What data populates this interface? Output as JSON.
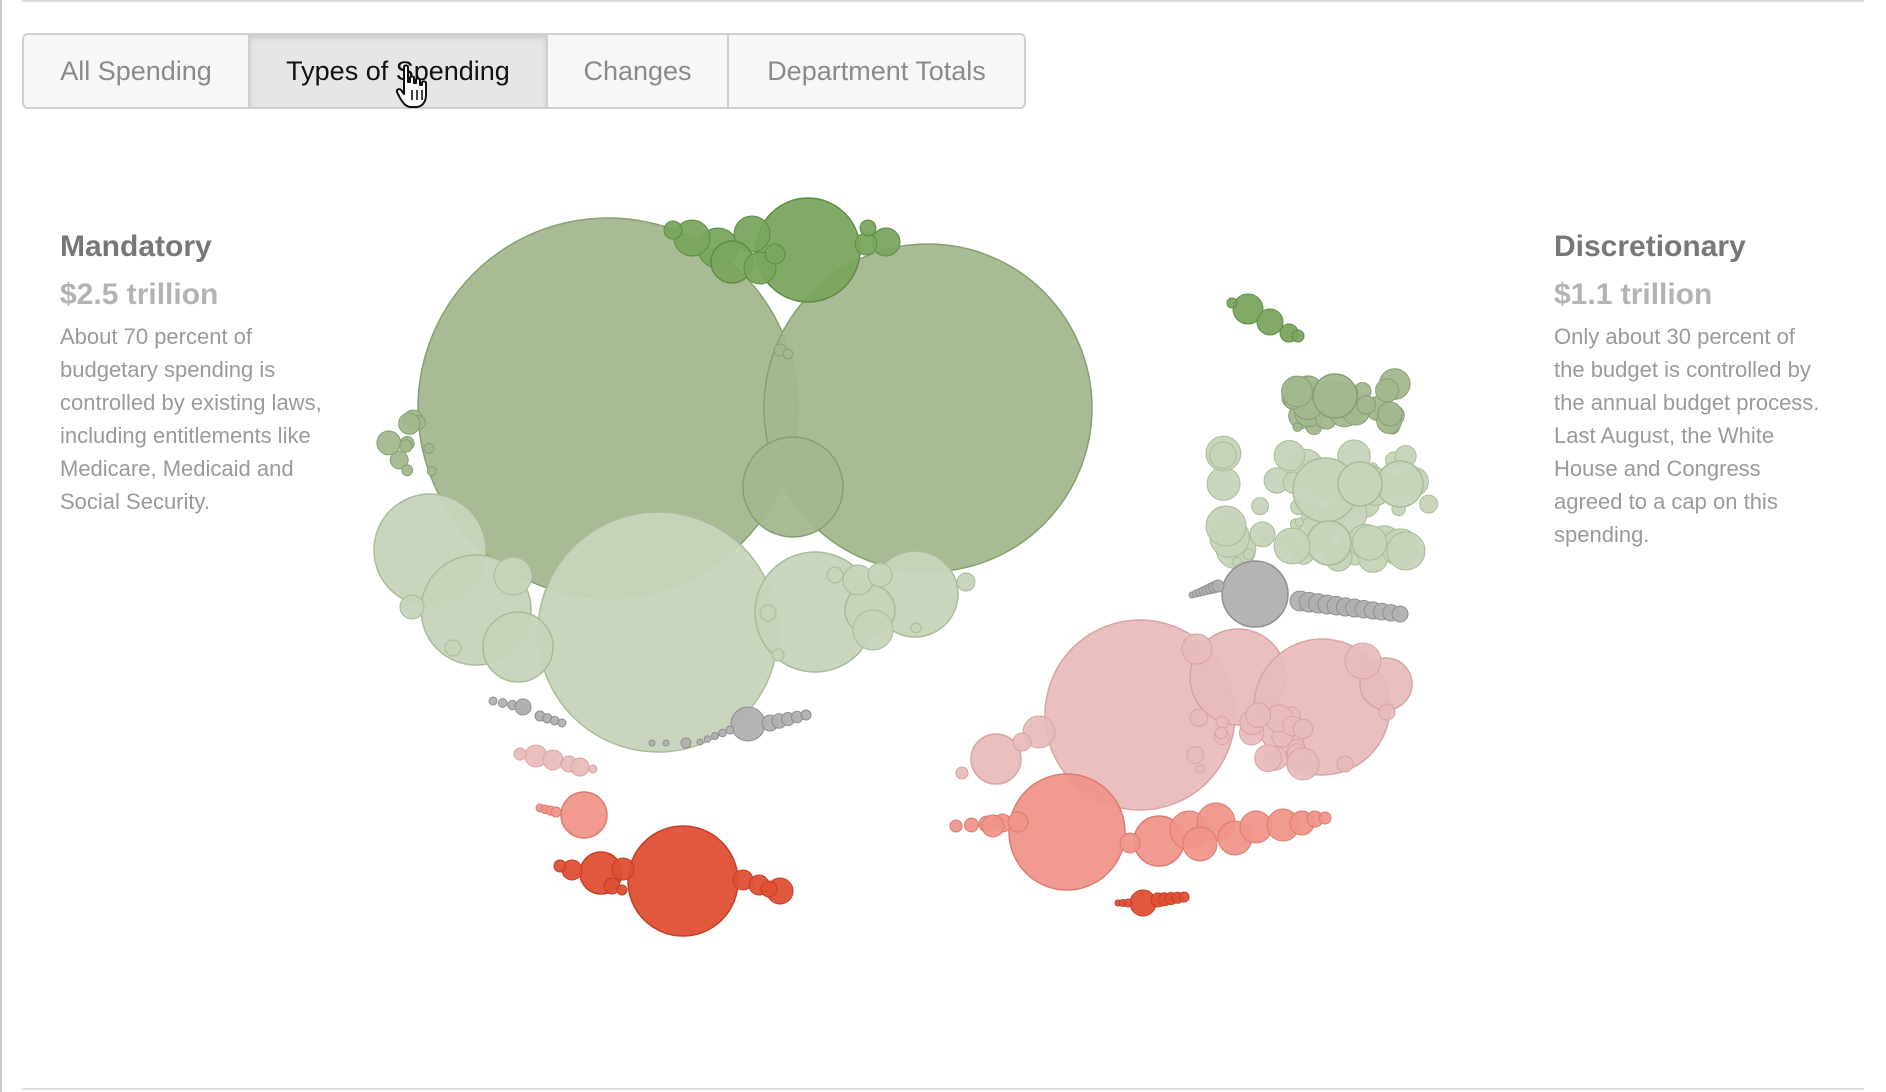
{
  "tabs": [
    {
      "label": "All Spending",
      "active": false
    },
    {
      "label": "Types of Spending",
      "active": true
    },
    {
      "label": "Changes",
      "active": false
    },
    {
      "label": "Department Totals",
      "active": false
    }
  ],
  "mandatory": {
    "title": "Mandatory",
    "amount": "$2.5 trillion",
    "description": "About 70 percent of budgetary spending is controlled by existing laws, including entitlements like Medicare, Medicaid and Social Security."
  },
  "discretionary": {
    "title": "Discretionary",
    "amount": "$1.1 trillion",
    "description": "Only about 30 percent of the budget is controlled by the annual budget process. Last August, the White House and Congress agreed to a cap on this spending."
  },
  "colors": {
    "green_dark": "#7aa55e",
    "green_mid": "#a3b78e",
    "green_light": "#c6d4b9",
    "gray": "#b0b0b0",
    "pink_light": "#e9bcbc",
    "salmon": "#f0958a",
    "red": "#de5035"
  },
  "cursor_icon": "hand-pointer-icon"
}
